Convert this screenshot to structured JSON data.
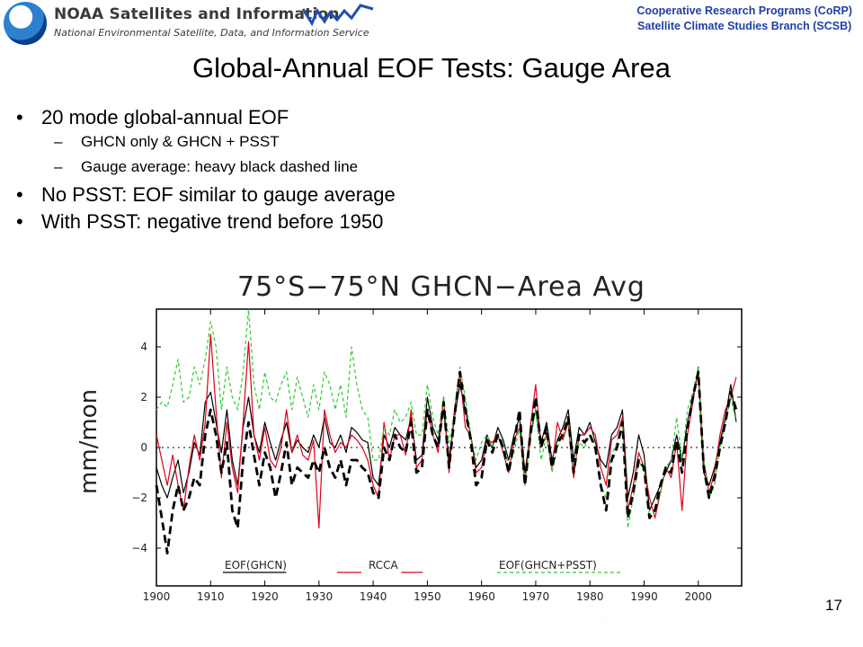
{
  "header": {
    "org_title": "NOAA Satellites and Information",
    "org_subtitle": "National Environmental Satellite, Data, and Information Service",
    "program_line1": "Cooperative Research Programs (CoRP)",
    "program_line2": "Satellite Climate Studies Branch (SCSB)"
  },
  "slide": {
    "title": "Global-Annual EOF Tests: Gauge Area",
    "page_number": "17",
    "bullets": [
      {
        "level": 1,
        "marker": "•",
        "text": "20 mode global-annual EOF"
      },
      {
        "level": 2,
        "marker": "–",
        "text": "GHCN only & GHCN + PSST"
      },
      {
        "level": 2,
        "marker": "–",
        "text": "Gauge average: heavy black dashed line"
      },
      {
        "level": 1,
        "marker": "•",
        "text": "No PSST: EOF similar to gauge average"
      },
      {
        "level": 1,
        "marker": "•",
        "text": "With PSST: negative trend before 1950"
      }
    ]
  },
  "chart_data": {
    "type": "line",
    "title": "75°S−75°N  GHCN−Area Avg",
    "ylabel": "mm/mon",
    "xlabel": "",
    "xlim": [
      1900,
      2008
    ],
    "ylim": [
      -5.5,
      5.5
    ],
    "x_ticks": [
      1900,
      1910,
      1920,
      1930,
      1940,
      1950,
      1960,
      1970,
      1980,
      1990,
      2000
    ],
    "y_ticks": [
      -4,
      -2,
      0,
      2,
      4
    ],
    "y_tick_labels": [
      "−4",
      "−2",
      "0",
      "2",
      "4"
    ],
    "zero_line": true,
    "grid": false,
    "legend_position": "bottom-inside",
    "x": [
      1900,
      1901,
      1902,
      1903,
      1904,
      1905,
      1906,
      1907,
      1908,
      1909,
      1910,
      1911,
      1912,
      1913,
      1914,
      1915,
      1916,
      1917,
      1918,
      1919,
      1920,
      1921,
      1922,
      1923,
      1924,
      1925,
      1926,
      1927,
      1928,
      1929,
      1930,
      1931,
      1932,
      1933,
      1934,
      1935,
      1936,
      1937,
      1938,
      1939,
      1940,
      1941,
      1942,
      1943,
      1944,
      1945,
      1946,
      1947,
      1948,
      1949,
      1950,
      1951,
      1952,
      1953,
      1954,
      1955,
      1956,
      1957,
      1958,
      1959,
      1960,
      1961,
      1962,
      1963,
      1964,
      1965,
      1966,
      1967,
      1968,
      1969,
      1970,
      1971,
      1972,
      1973,
      1974,
      1975,
      1976,
      1977,
      1978,
      1979,
      1980,
      1981,
      1982,
      1983,
      1984,
      1985,
      1986,
      1987,
      1988,
      1989,
      1990,
      1991,
      1992,
      1993,
      1994,
      1995,
      1996,
      1997,
      1998,
      1999,
      2000,
      2001,
      2002,
      2003,
      2004,
      2005,
      2006,
      2007
    ],
    "series": [
      {
        "name": "EOF(GHCN)",
        "color": "#000000",
        "style": "solid",
        "values": [
          -0.8,
          -1.5,
          -2.0,
          -1.2,
          -0.5,
          -1.8,
          -1.0,
          0.2,
          -0.3,
          1.8,
          2.2,
          1.0,
          -0.2,
          1.5,
          -0.5,
          -1.5,
          0.8,
          2.0,
          0.5,
          -0.2,
          1.0,
          0.2,
          -0.5,
          0.3,
          1.0,
          -0.2,
          0.3,
          0.0,
          -0.2,
          0.5,
          0.0,
          1.2,
          0.2,
          0.0,
          0.5,
          -0.2,
          0.8,
          0.6,
          0.3,
          0.2,
          -1.2,
          -1.5,
          0.5,
          0.0,
          0.8,
          0.5,
          0.3,
          1.2,
          -0.5,
          -0.3,
          2.0,
          0.8,
          0.3,
          1.5,
          -0.5,
          1.2,
          2.5,
          1.5,
          0.5,
          -0.8,
          -0.5,
          0.5,
          0.0,
          0.8,
          0.3,
          -0.5,
          0.5,
          1.2,
          -1.0,
          0.5,
          1.5,
          0.2,
          1.0,
          -0.5,
          0.3,
          0.8,
          1.5,
          -0.5,
          0.8,
          0.5,
          1.0,
          0.2,
          -0.5,
          -0.8,
          0.5,
          0.8,
          1.5,
          -2.0,
          -1.0,
          0.5,
          -0.3,
          -2.5,
          -2.0,
          -1.5,
          -1.0,
          -0.5,
          0.5,
          -0.5,
          1.0,
          2.0,
          3.0,
          -1.0,
          -1.5,
          -0.8,
          0.2,
          1.2,
          2.5,
          1.0
        ]
      },
      {
        "name": "RCCA",
        "color": "#e0001b",
        "style": "solid",
        "values": [
          0.5,
          -0.5,
          -1.5,
          -0.3,
          -1.5,
          -2.5,
          -0.8,
          0.5,
          -0.5,
          1.0,
          4.5,
          1.5,
          -1.2,
          1.0,
          -0.8,
          -1.8,
          1.0,
          4.2,
          0.5,
          -0.5,
          0.8,
          -0.5,
          -0.8,
          0.0,
          1.5,
          -0.2,
          0.5,
          -0.3,
          -0.5,
          0.3,
          -3.2,
          1.5,
          0.5,
          -0.2,
          0.2,
          0.0,
          0.5,
          0.3,
          0.0,
          -0.5,
          -1.5,
          -2.0,
          1.0,
          -0.5,
          0.5,
          0.5,
          -0.3,
          1.5,
          -0.8,
          -0.5,
          1.5,
          0.5,
          -0.2,
          2.0,
          -1.0,
          1.5,
          3.0,
          0.8,
          0.5,
          -1.0,
          -0.8,
          0.3,
          0.2,
          0.5,
          -0.2,
          -1.0,
          0.3,
          0.8,
          -1.5,
          0.8,
          2.5,
          0.0,
          0.5,
          -0.8,
          1.0,
          0.3,
          1.0,
          -1.2,
          0.5,
          0.5,
          0.8,
          0.5,
          -0.8,
          -1.5,
          0.3,
          0.5,
          1.2,
          -2.5,
          -1.5,
          -0.2,
          -0.8,
          -2.0,
          -2.8,
          -1.8,
          -0.8,
          -1.2,
          0.2,
          -2.5,
          0.5,
          1.8,
          3.2,
          -0.5,
          -1.8,
          -1.0,
          0.5,
          1.5,
          2.0,
          2.8
        ]
      },
      {
        "name": "EOF(GHCN+PSST)",
        "color": "#2ecc2e",
        "style": "dashed",
        "values": [
          1.5,
          1.8,
          1.6,
          2.5,
          3.5,
          1.8,
          2.0,
          3.2,
          2.5,
          3.5,
          5.0,
          4.0,
          1.5,
          3.2,
          2.0,
          1.5,
          3.0,
          5.5,
          2.5,
          1.5,
          3.0,
          2.0,
          1.8,
          2.5,
          3.0,
          1.5,
          2.8,
          2.0,
          1.2,
          2.5,
          1.5,
          3.0,
          2.5,
          1.5,
          2.5,
          1.2,
          4.0,
          2.5,
          1.5,
          1.2,
          -0.5,
          -0.5,
          0.8,
          0.5,
          1.5,
          1.0,
          1.2,
          1.8,
          0.5,
          0.5,
          2.5,
          1.2,
          0.5,
          2.0,
          0.2,
          1.2,
          3.2,
          2.0,
          0.5,
          -0.5,
          0.2,
          0.5,
          0.0,
          0.5,
          0.2,
          -0.8,
          -0.2,
          0.8,
          -1.5,
          0.3,
          1.5,
          -0.5,
          0.5,
          -1.0,
          0.0,
          0.5,
          1.2,
          -1.0,
          0.2,
          0.0,
          0.5,
          0.0,
          -1.5,
          -2.0,
          -0.3,
          0.2,
          1.0,
          -3.2,
          -2.0,
          -0.5,
          -1.0,
          -2.8,
          -2.5,
          -1.8,
          -0.8,
          -0.5,
          1.2,
          -0.5,
          1.5,
          2.2,
          3.2,
          -0.5,
          -2.0,
          -1.5,
          0.0,
          1.0,
          2.0,
          1.0
        ]
      },
      {
        "name": "Gauge average",
        "color": "#000000",
        "style": "heavy-dashed",
        "values": [
          -1.5,
          -2.8,
          -4.2,
          -2.5,
          -1.5,
          -2.5,
          -2.0,
          -1.2,
          -1.5,
          0.5,
          1.5,
          0.5,
          -1.0,
          0.2,
          -2.5,
          -3.2,
          -0.5,
          1.0,
          -0.3,
          -1.5,
          -0.2,
          -0.8,
          -2.0,
          -1.0,
          0.2,
          -1.5,
          -0.8,
          -1.0,
          -1.2,
          -0.5,
          -1.0,
          0.0,
          -0.8,
          -1.2,
          -0.5,
          -1.5,
          -0.5,
          -0.5,
          -0.8,
          -1.0,
          -1.8,
          -2.0,
          0.0,
          -0.5,
          0.5,
          0.0,
          -0.2,
          1.0,
          -1.0,
          -0.8,
          1.5,
          0.5,
          0.0,
          1.8,
          -0.8,
          1.2,
          3.0,
          1.5,
          0.3,
          -1.5,
          -1.2,
          0.3,
          -0.2,
          0.5,
          0.0,
          -1.0,
          0.2,
          1.5,
          -1.5,
          0.5,
          2.0,
          0.0,
          0.8,
          -0.8,
          0.2,
          0.5,
          1.2,
          -1.0,
          0.5,
          0.2,
          0.5,
          0.0,
          -1.5,
          -2.5,
          -0.5,
          0.0,
          1.0,
          -2.8,
          -1.8,
          -0.5,
          -0.8,
          -2.8,
          -2.5,
          -1.5,
          -0.8,
          -1.0,
          0.3,
          -1.0,
          0.8,
          2.0,
          3.0,
          -0.8,
          -2.0,
          -1.2,
          0.0,
          1.0,
          2.2,
          1.5
        ]
      }
    ],
    "legend": [
      {
        "label": "EOF(GHCN)",
        "color": "#000000"
      },
      {
        "label": "RCCA",
        "color": "#e0001b"
      },
      {
        "label": "EOF(GHCN+PSST)",
        "color": "#2ecc2e"
      }
    ]
  }
}
